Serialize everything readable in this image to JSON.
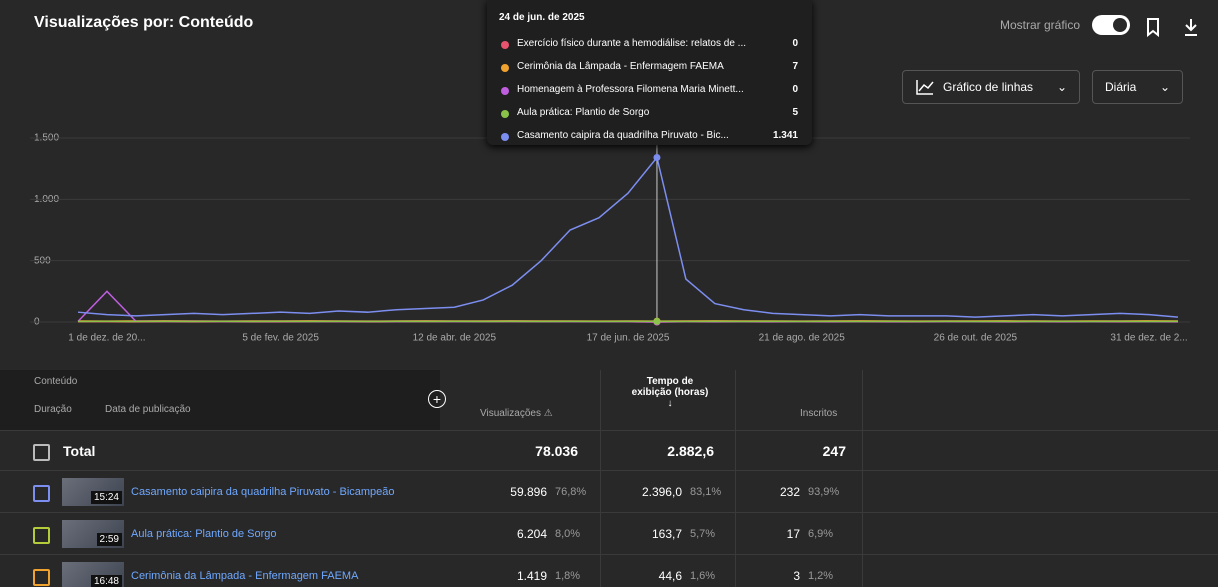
{
  "header": {
    "title": "Visualizações por: Conteúdo",
    "show_chart": "Mostrar gráfico",
    "chart_type": "Gráfico de linhas",
    "granularity": "Diária"
  },
  "chart_data": {
    "type": "line",
    "categories": [
      null,
      "1 de dez. de 20...",
      null,
      null,
      null,
      null,
      null,
      "5 de fev. de 2025",
      null,
      null,
      null,
      null,
      null,
      "12 de abr. de 2025",
      null,
      null,
      null,
      null,
      null,
      "17 de jun. de 2025",
      null,
      null,
      null,
      null,
      null,
      "21 de ago. de 2025",
      null,
      null,
      null,
      null,
      null,
      "26 de out. de 2025",
      null,
      null,
      null,
      null,
      null,
      "31 de dez. de 2...",
      null
    ],
    "series": [
      {
        "color": "#e8546e",
        "values": [
          2,
          2,
          1,
          2,
          1,
          2,
          1,
          1,
          2,
          2,
          1,
          2,
          2,
          3,
          2,
          3,
          2,
          3,
          2,
          2,
          0,
          2,
          1,
          2,
          1,
          2,
          1,
          2,
          1,
          1,
          2,
          2,
          1,
          2,
          1,
          2,
          1,
          2,
          1
        ]
      },
      {
        "color": "#f0a22e",
        "values": [
          8,
          7,
          8,
          9,
          8,
          7,
          8,
          8,
          9,
          8,
          7,
          8,
          9,
          8,
          8,
          9,
          8,
          8,
          7,
          8,
          7,
          8,
          9,
          8,
          8,
          7,
          8,
          9,
          8,
          7,
          8,
          8,
          9,
          8,
          7,
          8,
          8,
          9,
          8
        ]
      },
      {
        "color": "#c05ee0",
        "values": [
          5,
          250,
          6,
          4,
          5,
          4,
          3,
          4,
          3,
          4,
          3,
          3,
          4,
          3,
          3,
          4,
          3,
          3,
          2,
          3,
          0,
          3,
          2,
          3,
          2,
          3,
          2,
          3,
          2,
          2,
          3,
          2,
          2,
          3,
          2,
          2,
          3,
          2,
          2
        ]
      },
      {
        "color": "#8bc34a",
        "values": [
          4,
          5,
          4,
          5,
          4,
          5,
          4,
          5,
          4,
          5,
          4,
          5,
          4,
          5,
          4,
          5,
          4,
          5,
          4,
          5,
          5,
          4,
          5,
          4,
          5,
          4,
          5,
          4,
          5,
          4,
          5,
          4,
          5,
          4,
          5,
          4,
          5,
          4,
          5
        ]
      },
      {
        "color": "#7c8ef0",
        "values": [
          80,
          60,
          50,
          60,
          70,
          60,
          70,
          80,
          70,
          90,
          80,
          100,
          110,
          120,
          180,
          300,
          500,
          750,
          850,
          1050,
          1341,
          350,
          150,
          100,
          70,
          60,
          50,
          60,
          50,
          50,
          50,
          40,
          50,
          60,
          50,
          60,
          70,
          60,
          40
        ]
      }
    ],
    "ylim": [
      0,
      1500
    ],
    "yticks": [
      0,
      500,
      {
        "value": 1000,
        "label": "1.000"
      },
      {
        "value": 1500,
        "label": "1.500"
      }
    ],
    "grid": true
  },
  "tooltip": {
    "date": "24 de jun. de 2025",
    "rows": [
      {
        "label": "Exercício físico durante a hemodiálise: relatos de ...",
        "value": "0"
      },
      {
        "label": "Cerimônia da Lâmpada - Enfermagem FAEMA",
        "value": "7"
      },
      {
        "label": "Homenagem à Professora Filomena Maria Minett...",
        "value": "0"
      },
      {
        "label": "Aula prática: Plantio de Sorgo",
        "value": "5"
      },
      {
        "label": "Casamento caipira da quadrilha Piruvato - Bic...",
        "value": "1.341"
      }
    ]
  },
  "table": {
    "header": {
      "content": "Conteúdo",
      "duration": "Duração",
      "published": "Data de publicação",
      "views": "Visualizações",
      "watch_time": "Tempo de exibição (horas)",
      "subscribers": "Inscritos"
    },
    "total": {
      "label": "Total",
      "views": "78.036",
      "watch_time": "2.882,6",
      "subscribers": "247"
    },
    "rows": [
      {
        "duration": "15:24",
        "title": "Casamento caipira da quadrilha Piruvato - Bicampeão",
        "views": "59.896",
        "views_pct": "76,8%",
        "watch_time": "2.396,0",
        "watch_time_pct": "83,1%",
        "subscribers": "232",
        "subscribers_pct": "93,9%"
      },
      {
        "duration": "2:59",
        "title": "Aula prática: Plantio de Sorgo",
        "views": "6.204",
        "views_pct": "8,0%",
        "watch_time": "163,7",
        "watch_time_pct": "5,7%",
        "subscribers": "17",
        "subscribers_pct": "6,9%"
      },
      {
        "duration": "16:48",
        "title": "Cerimônia da Lâmpada - Enfermagem FAEMA",
        "views": "1.419",
        "views_pct": "1,8%",
        "watch_time": "44,6",
        "watch_time_pct": "1,6%",
        "subscribers": "3",
        "subscribers_pct": "1,2%"
      }
    ]
  }
}
